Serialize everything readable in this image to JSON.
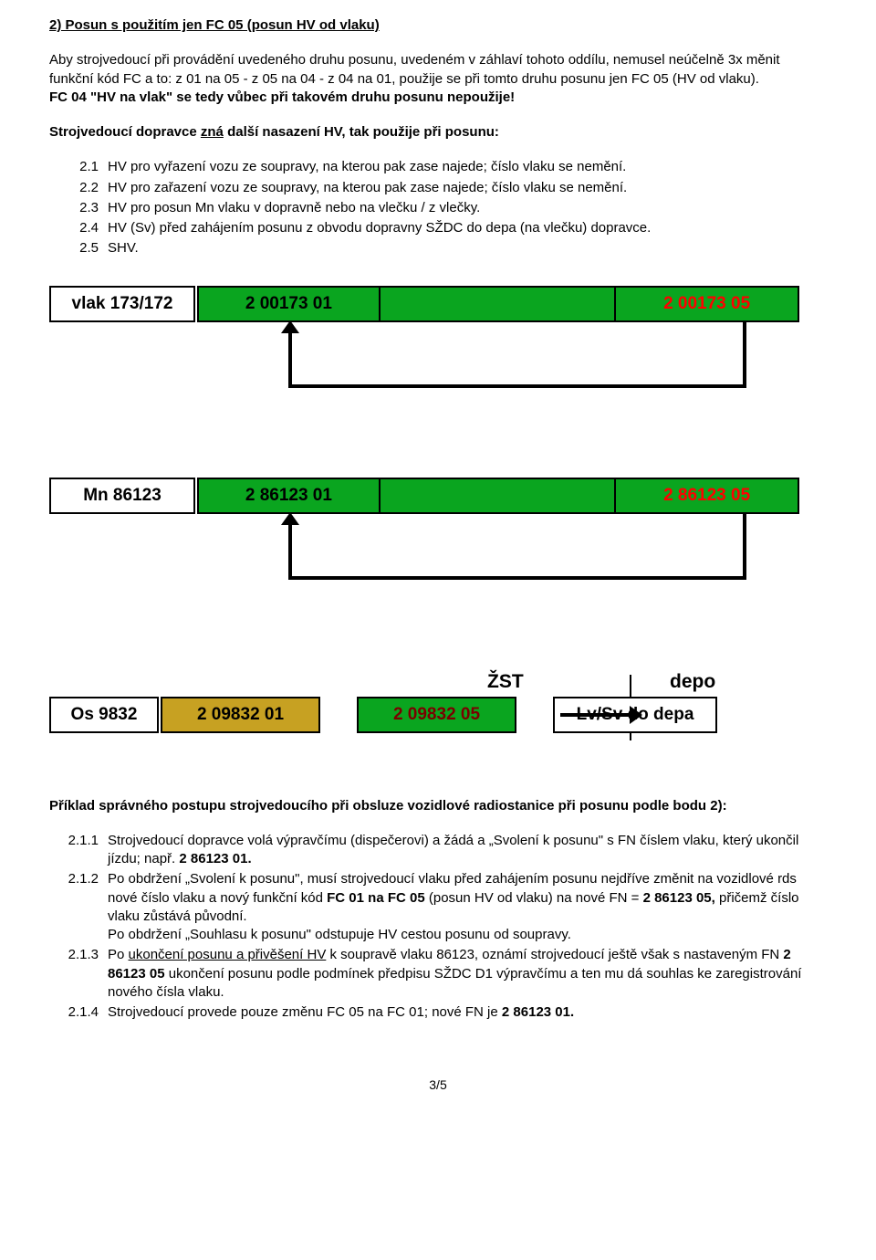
{
  "heading": "2)  Posun s použitím jen FC 05 (posun HV od vlaku)",
  "para1": "Aby strojvedoucí při provádění uvedeného druhu posunu, uvedeném v záhlaví tohoto oddílu, nemusel neúčelně 3x měnit funkční kód FC a to: z 01 na 05 - z 05 na 04 - z 04 na 01, použije se při tomto druhu posunu jen FC 05 (HV od vlaku).",
  "para1b": "FC 04 \"HV na vlak\" se tedy vůbec při takovém druhu posunu nepoužije!",
  "para2a": "Strojvedoucí dopravce ",
  "para2u": "zná",
  "para2b": " další nasazení HV, tak použije při posunu:",
  "list1": [
    {
      "n": "2.1",
      "t": "HV pro vyřazení vozu ze soupravy, na kterou pak zase najede; číslo vlaku se nemění."
    },
    {
      "n": "2.2",
      "t": "HV pro zařazení vozu ze soupravy, na kterou pak zase najede; číslo vlaku se nemění."
    },
    {
      "n": "2.3",
      "t": "HV pro posun Mn vlaku v dopravně nebo na vlečku / z vlečky."
    },
    {
      "n": "2.4",
      "t": "HV (Sv) před zahájením posunu z obvodu dopravny SŽDC do depa (na vlečku) dopravce."
    },
    {
      "n": "2.5",
      "t": "SHV."
    }
  ],
  "diagrams": {
    "colors": {
      "green": "#0aa51f",
      "amber": "#c7a122",
      "black": "#000000",
      "red": "#ff0000",
      "darkred": "#7a0000",
      "white": "#ffffff"
    },
    "row1": {
      "whiteLabel": "vlak 173/172",
      "seg1": {
        "text": "2 00173 01",
        "bg": "green",
        "color": "black"
      },
      "seg2": {
        "text": "",
        "bg": "green",
        "color": "black"
      },
      "seg3": {
        "text": "2 00173 05",
        "bg": "green",
        "color": "red"
      }
    },
    "row2": {
      "whiteLabel": "Mn 86123",
      "seg1": {
        "text": "2 86123 01",
        "bg": "green",
        "color": "black"
      },
      "seg2": {
        "text": "",
        "bg": "green",
        "color": "black"
      },
      "seg3": {
        "text": "2 86123 05",
        "bg": "green",
        "color": "red"
      }
    },
    "row3": {
      "whiteLabel": "Os 9832",
      "labelLeft": "ŽST",
      "labelRight": "depo",
      "seg1": {
        "text": "2 09832 01",
        "bg": "amber",
        "color": "black"
      },
      "seg2": {
        "text": "2 09832 05",
        "bg": "green",
        "color": "darkred"
      },
      "seg3": {
        "text": "Lv/Sv do depa",
        "bg": "white",
        "color": "black"
      }
    }
  },
  "example_heading_a": "Příklad správného postupu strojvedoucího při obsluze vozidlové radiostanice při posunu podle bodu 2):",
  "list2": [
    {
      "n": "2.1.1",
      "parts": [
        {
          "t": "Strojvedoucí dopravce volá výpravčímu (dispečerovi) a žádá a „Svolení k posunu\" s FN číslem vlaku, který ukončil jízdu; např. "
        },
        {
          "t": "2 86123 01.",
          "b": true
        }
      ]
    },
    {
      "n": "2.1.2",
      "parts": [
        {
          "t": "Po obdržení „Svolení k posunu\", musí strojvedoucí vlaku před zahájením posunu nejdříve změnit na vozidlové rds nové číslo vlaku a nový funkční kód "
        },
        {
          "t": "FC 01 na FC 05",
          "b": true
        },
        {
          "t": " (posun HV od vlaku) na nové FN = "
        },
        {
          "t": "2 86123 05,",
          "b": true
        },
        {
          "t": " přičemž číslo vlaku zůstává původní.\nPo obdržení „Souhlasu k posunu\" odstupuje HV cestou posunu od soupravy."
        }
      ]
    },
    {
      "n": "2.1.3",
      "parts": [
        {
          "t": "Po "
        },
        {
          "t": "ukončení posunu a přivěšení HV",
          "u": true
        },
        {
          "t": " k soupravě vlaku 86123, oznámí strojvedoucí ještě však s nastaveným FN "
        },
        {
          "t": "2 86123 05",
          "b": true
        },
        {
          "t": " ukončení posunu podle podmínek předpisu SŽDC D1 výpravčímu a ten mu dá souhlas ke zaregistrování nového čísla vlaku."
        }
      ]
    },
    {
      "n": "2.1.4",
      "parts": [
        {
          "t": "Strojvedoucí provede pouze změnu FC 05 na FC 01; nové FN je  "
        },
        {
          "t": "2 86123 01.",
          "b": true
        }
      ]
    }
  ],
  "footer": "3/5"
}
